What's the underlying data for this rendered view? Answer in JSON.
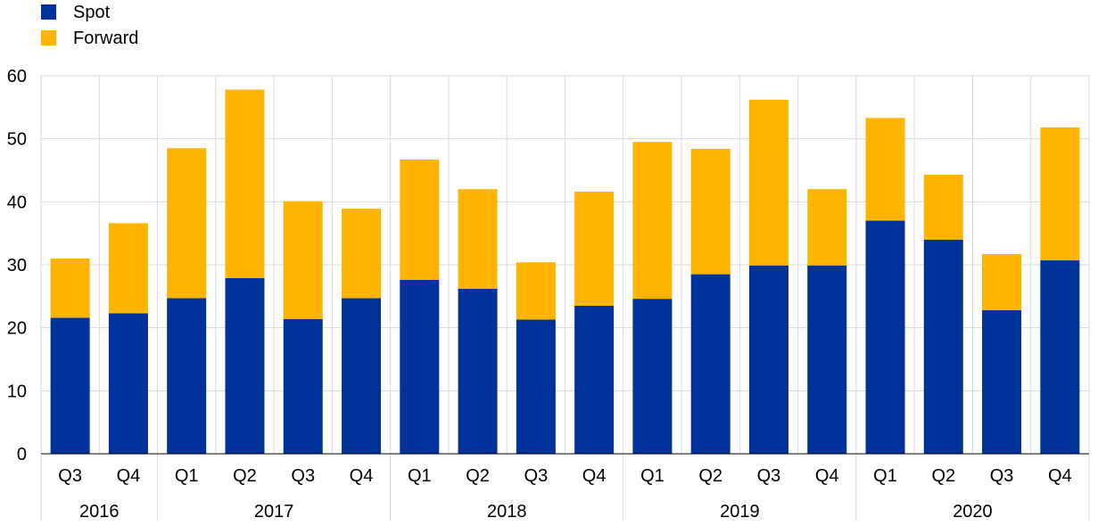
{
  "chart_data": {
    "type": "bar",
    "stacked": true,
    "title": "",
    "xlabel": "",
    "ylabel": "",
    "ylim": [
      0,
      60
    ],
    "yticks": [
      0,
      10,
      20,
      30,
      40,
      50,
      60
    ],
    "grid": true,
    "legend_position": "top-left",
    "categories": [
      "Q3",
      "Q4",
      "Q1",
      "Q2",
      "Q3",
      "Q4",
      "Q1",
      "Q2",
      "Q3",
      "Q4",
      "Q1",
      "Q2",
      "Q3",
      "Q4",
      "Q1",
      "Q2",
      "Q3",
      "Q4"
    ],
    "year_groups": [
      {
        "label": "2016",
        "count": 2
      },
      {
        "label": "2017",
        "count": 4
      },
      {
        "label": "2018",
        "count": 4
      },
      {
        "label": "2019",
        "count": 4
      },
      {
        "label": "2020",
        "count": 4
      }
    ],
    "series": [
      {
        "name": "Spot",
        "color": "#003299",
        "values": [
          21.6,
          22.3,
          24.7,
          27.9,
          21.4,
          24.7,
          27.6,
          26.2,
          21.3,
          23.5,
          24.6,
          28.5,
          29.9,
          29.9,
          37.0,
          34.0,
          22.8,
          30.7
        ]
      },
      {
        "name": "Forward",
        "color": "#ffb400",
        "values": [
          9.4,
          14.3,
          23.8,
          29.9,
          18.7,
          14.2,
          19.1,
          15.8,
          9.1,
          18.1,
          24.9,
          19.9,
          26.3,
          12.1,
          16.3,
          10.3,
          8.9,
          21.1
        ]
      }
    ]
  }
}
